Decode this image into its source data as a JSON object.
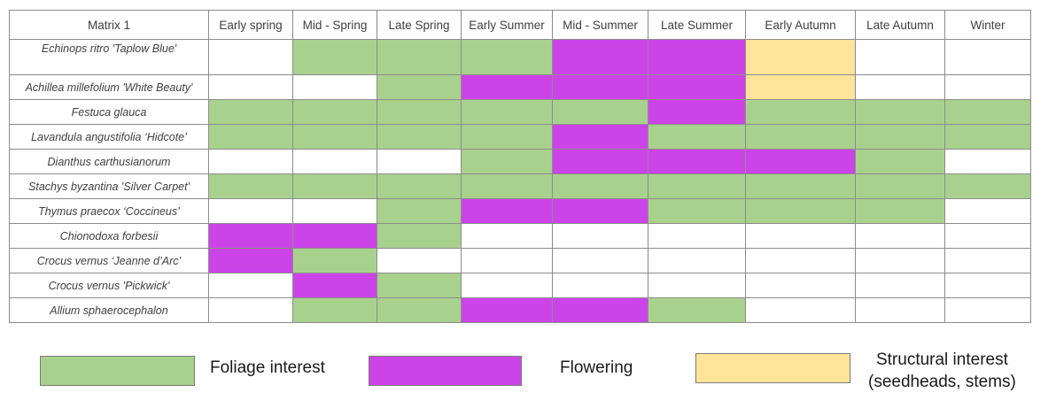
{
  "chart_data": {
    "type": "table",
    "corner_label": "Matrix 1",
    "seasons": [
      "Early spring",
      "Mid - Spring",
      "Late Spring",
      "Early Summer",
      "Mid - Summer",
      "Late Summer",
      "Early Autumn",
      "Late Autumn",
      "Winter"
    ],
    "legend": [
      {
        "code": "F",
        "label": "Foliage interest",
        "color": "#a9d18e"
      },
      {
        "code": "B",
        "label": "Flowering",
        "color": "#cc44e8"
      },
      {
        "code": "S",
        "label": "Structural interest",
        "label_line2": "(seedheads, stems)",
        "color": "#ffe499"
      }
    ],
    "rows": [
      {
        "plant": "Echinops ritro 'Taplow Blue'",
        "cells": [
          "N",
          "F",
          "F",
          "F",
          "B",
          "B",
          "S",
          "N",
          "N"
        ]
      },
      {
        "plant": "Achillea millefolium 'White Beauty'",
        "cells": [
          "N",
          "N",
          "F",
          "B",
          "B",
          "B",
          "S",
          "N",
          "N"
        ]
      },
      {
        "plant": "Festuca glauca",
        "cells": [
          "F",
          "F",
          "F",
          "F",
          "F",
          "B",
          "F",
          "F",
          "F"
        ]
      },
      {
        "plant": "Lavandula angustifolia ‘Hidcote’",
        "cells": [
          "F",
          "F",
          "F",
          "F",
          "B",
          "F",
          "F",
          "F",
          "F"
        ]
      },
      {
        "plant": "Dianthus carthusianorum",
        "cells": [
          "N",
          "N",
          "N",
          "F",
          "B",
          "B",
          "B",
          "F",
          "N"
        ]
      },
      {
        "plant": "Stachys byzantina 'Silver Carpet'",
        "cells": [
          "F",
          "F",
          "F",
          "F",
          "F",
          "F",
          "F",
          "F",
          "F"
        ]
      },
      {
        "plant": "Thymus praecox ‘Coccineus’",
        "cells": [
          "N",
          "N",
          "F",
          "B",
          "B",
          "F",
          "F",
          "F",
          "N"
        ]
      },
      {
        "plant": "Chionodoxa forbesii",
        "cells": [
          "B",
          "B",
          "F",
          "N",
          "N",
          "N",
          "N",
          "N",
          "N"
        ]
      },
      {
        "plant": "Crocus vernus ‘Jeanne d’Arc’",
        "cells": [
          "B",
          "F",
          "N",
          "N",
          "N",
          "N",
          "N",
          "N",
          "N"
        ]
      },
      {
        "plant": "Crocus vernus 'Pickwick'",
        "cells": [
          "N",
          "B",
          "F",
          "N",
          "N",
          "N",
          "N",
          "N",
          "N"
        ]
      },
      {
        "plant": "Allium sphaerocephalon",
        "cells": [
          "N",
          "F",
          "F",
          "B",
          "B",
          "F",
          "N",
          "N",
          "N"
        ]
      }
    ]
  }
}
